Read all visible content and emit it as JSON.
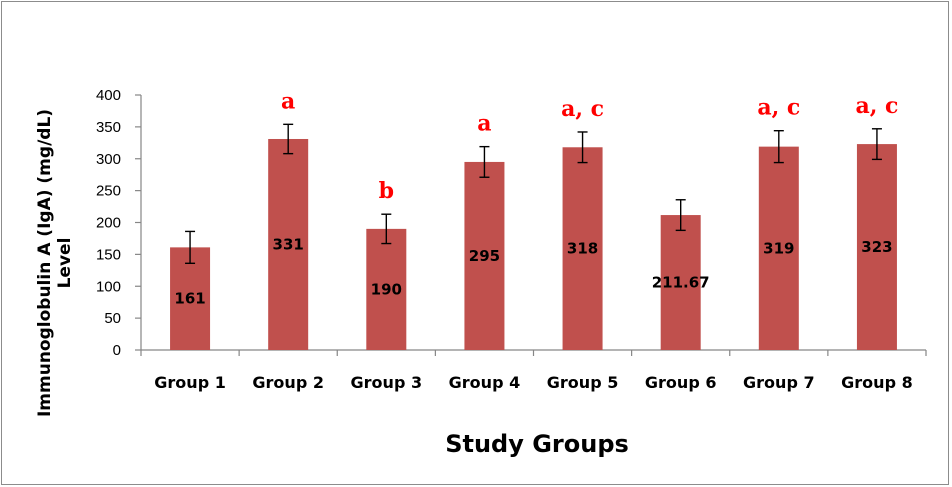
{
  "chart_data": {
    "type": "bar",
    "title": "",
    "xlabel": "Study Groups",
    "ylabel_line1": "Immunoglobulin  A (IgA) (mg/dL)",
    "ylabel_line2": "Level",
    "ylim": [
      0,
      400
    ],
    "yticks": [
      0,
      50,
      100,
      150,
      200,
      250,
      300,
      350,
      400
    ],
    "grid": false,
    "legend": "none",
    "categories": [
      "Group 1",
      "Group 2",
      "Group 3",
      "Group 4",
      "Group 5",
      "Group 6",
      "Group 7",
      "Group 8"
    ],
    "values": [
      161,
      331,
      190,
      295,
      318,
      211.67,
      319,
      323
    ],
    "value_labels": [
      "161",
      "331",
      "190",
      "295",
      "318",
      "211.67",
      "319",
      "323"
    ],
    "error_bars": [
      25,
      23,
      23,
      24,
      24,
      24,
      25,
      24
    ],
    "significance": [
      "",
      "a",
      "b",
      "a",
      "a, c",
      "",
      "a, c",
      "a, c"
    ],
    "bar_color": "#c0504d",
    "significance_color": "#ff0000"
  }
}
